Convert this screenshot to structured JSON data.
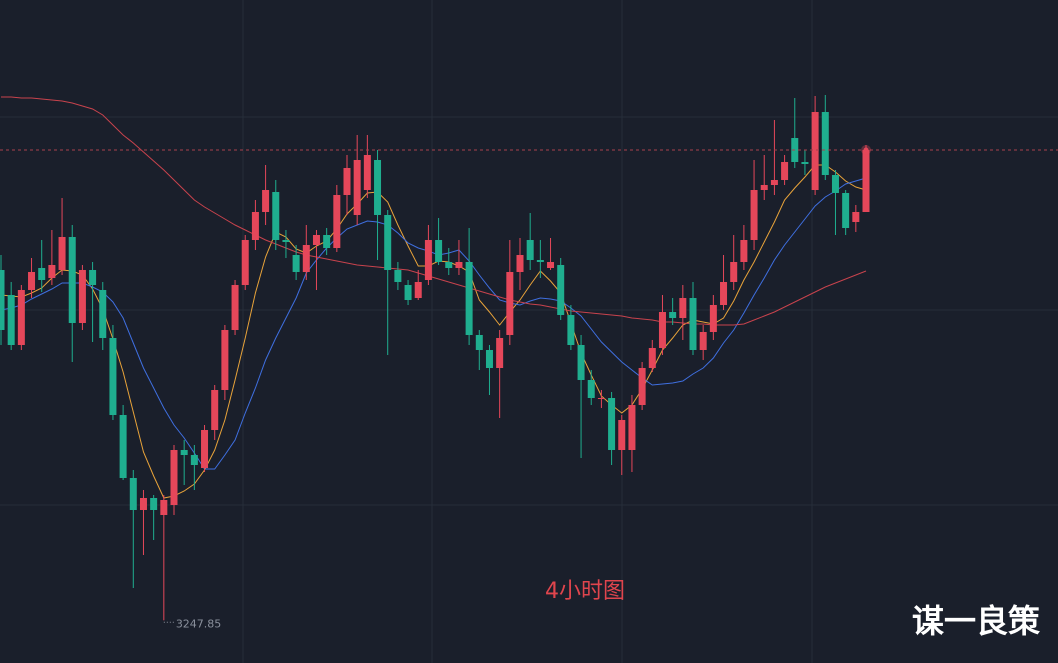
{
  "chart_data": {
    "type": "candlestick",
    "annotation": "4小时图",
    "watermark": "谋一良策",
    "ylim": [
      3226.5,
      3558
    ],
    "grid": true,
    "up_color": "#e5475a",
    "down_color": "#1fae8f",
    "open": [
      3423,
      3410.5,
      3385.5,
      3413,
      3424,
      3419,
      3423,
      3439.5,
      3396.5,
      3423,
      3413,
      3389,
      3350.5,
      3319,
      3303,
      3309,
      3300.5,
      3305.5,
      3333,
      3330.5,
      3324,
      3343,
      3363,
      3393,
      3415.5,
      3438,
      3452,
      3462,
      3438,
      3430.5,
      3422,
      3435.5,
      3440.5,
      3434,
      3460.5,
      3450.5,
      3463,
      3478,
      3450.5,
      3423,
      3415.5,
      3409,
      3418,
      3438,
      3427,
      3424,
      3427,
      3390.5,
      3383,
      3374,
      3390.5,
      3422,
      3438,
      3428,
      3424,
      3425.5,
      3400.5,
      3385.5,
      3368,
      3359,
      3359,
      3333,
      3333,
      3355.5,
      3374,
      3384,
      3402,
      3399,
      3409,
      3383,
      3392,
      3405.5,
      3417,
      3427,
      3438,
      3463,
      3465.5,
      3468,
      3489,
      3477,
      3463,
      3502,
      3470.5,
      3461.5,
      3447,
      3452
    ],
    "high": [
      3430.5,
      3417,
      3415.5,
      3429,
      3438,
      3443,
      3459,
      3445.5,
      3425.5,
      3427,
      3417,
      3395.5,
      3355.5,
      3323,
      3313,
      3310.5,
      3310.5,
      3335.5,
      3338,
      3335.5,
      3345.5,
      3365.5,
      3395.5,
      3418,
      3440.5,
      3458,
      3475.5,
      3468,
      3443,
      3435.5,
      3445.5,
      3443,
      3444,
      3465.5,
      3480.5,
      3490.5,
      3490.5,
      3483,
      3453,
      3427,
      3418,
      3423,
      3445.5,
      3449,
      3434,
      3438,
      3444,
      3393,
      3385.5,
      3393,
      3438,
      3439,
      3451.5,
      3438,
      3439,
      3429,
      3405.5,
      3390.5,
      3373,
      3363,
      3362,
      3350.5,
      3360.5,
      3377,
      3388,
      3410.5,
      3409,
      3415.5,
      3417,
      3395.5,
      3410.5,
      3430.5,
      3440.5,
      3445.5,
      3478,
      3480.5,
      3498,
      3480.5,
      3509,
      3483,
      3510,
      3510.5,
      3473,
      3463,
      3455.5,
      3485.5
    ],
    "low": [
      3385.5,
      3383,
      3383,
      3409,
      3412,
      3415.5,
      3420.5,
      3377,
      3393,
      3387,
      3383,
      3348,
      3318,
      3264,
      3280.5,
      3288,
      3247.85,
      3300.5,
      3315.5,
      3313,
      3322,
      3338,
      3358,
      3390.5,
      3413,
      3433,
      3445.5,
      3433,
      3429,
      3418,
      3418,
      3413,
      3430.5,
      3432,
      3450.5,
      3445.5,
      3459,
      3428,
      3380.5,
      3413,
      3405.5,
      3408,
      3415.5,
      3425.5,
      3420.5,
      3420.5,
      3385.5,
      3373,
      3360.5,
      3349,
      3385.5,
      3413,
      3423,
      3419,
      3423,
      3398,
      3383,
      3329,
      3355.5,
      3354,
      3325.5,
      3320.5,
      3322,
      3353,
      3372,
      3380.5,
      3395.5,
      3388,
      3380.5,
      3378,
      3388,
      3403,
      3413,
      3423,
      3433,
      3458,
      3460.5,
      3465.5,
      3474,
      3470.5,
      3460.5,
      3468,
      3440.5,
      3440.5,
      3442,
      3452
    ],
    "close": [
      3393,
      3385.5,
      3413,
      3422,
      3418,
      3425.5,
      3439.5,
      3396.5,
      3423,
      3415.5,
      3389,
      3350.5,
      3319,
      3303,
      3309,
      3303,
      3308,
      3333,
      3330.5,
      3325.5,
      3343,
      3363,
      3393,
      3415.5,
      3438,
      3452,
      3463,
      3438,
      3437,
      3422,
      3435.5,
      3440.5,
      3434,
      3460.5,
      3474,
      3478,
      3480.5,
      3450.5,
      3423,
      3417,
      3408,
      3417,
      3438,
      3427,
      3424,
      3427,
      3390.5,
      3383,
      3374,
      3389,
      3422,
      3430.5,
      3428,
      3427,
      3427,
      3400.5,
      3385.5,
      3368,
      3359,
      3359,
      3333,
      3348,
      3355.5,
      3374,
      3384,
      3402,
      3399,
      3409,
      3383,
      3392,
      3405.5,
      3417,
      3427,
      3438,
      3463,
      3465.5,
      3468,
      3477,
      3477,
      3476,
      3502,
      3470.5,
      3461.5,
      3444,
      3452,
      3483
    ],
    "lines": [
      {
        "color": "#e8a33a",
        "values": [
          3410.5,
          3410,
          3409.5,
          3411.5,
          3414,
          3419,
          3423,
          3422.5,
          3420.5,
          3413.5,
          3403.5,
          3388.5,
          3372,
          3352,
          3332,
          3320,
          3309,
          3310,
          3312.5,
          3316,
          3323,
          3333,
          3348,
          3368,
          3389,
          3411.5,
          3429.5,
          3442,
          3439.5,
          3433.5,
          3431.5,
          3435,
          3437.5,
          3443.5,
          3451,
          3456,
          3461.5,
          3462,
          3457,
          3445.5,
          3435,
          3425,
          3425,
          3427.5,
          3427,
          3425,
          3422,
          3408,
          3402,
          3395.5,
          3402,
          3408,
          3415.5,
          3422.5,
          3417.5,
          3411.5,
          3396.5,
          3381.5,
          3370.5,
          3360,
          3355.5,
          3351.5,
          3355.5,
          3363.5,
          3373,
          3383,
          3389,
          3395.5,
          3398,
          3397,
          3396,
          3399,
          3407.5,
          3418,
          3427,
          3437,
          3447,
          3458,
          3464,
          3469.5,
          3475.5,
          3475.5,
          3472,
          3467.5,
          3464.5,
          3463
        ]
      },
      {
        "color": "#3f6fe0",
        "values": [
          3403,
          3404,
          3405.5,
          3408.5,
          3411,
          3413.5,
          3416.5,
          3416.5,
          3416.5,
          3414.5,
          3412,
          3407,
          3399,
          3386.5,
          3374,
          3364,
          3354,
          3345.5,
          3339,
          3331.5,
          3323.5,
          3323.5,
          3330.5,
          3338,
          3351.5,
          3364,
          3378,
          3389,
          3399,
          3409,
          3421.5,
          3428,
          3434,
          3439,
          3443.5,
          3445.5,
          3447.5,
          3447,
          3445.5,
          3441.5,
          3436.5,
          3434,
          3432.5,
          3430.5,
          3431.5,
          3433,
          3427.5,
          3420.5,
          3414,
          3408,
          3406.5,
          3405.5,
          3407.5,
          3409,
          3408.5,
          3407.5,
          3404,
          3400,
          3393.5,
          3387,
          3382,
          3377,
          3373,
          3369,
          3365.5,
          3366,
          3366.5,
          3367.5,
          3371,
          3374,
          3379,
          3386.5,
          3393,
          3401.5,
          3410.5,
          3419,
          3428,
          3435.5,
          3442,
          3448.5,
          3455,
          3459.5,
          3462.5,
          3466,
          3467.5,
          3469
        ]
      },
      {
        "color": "#c8434d",
        "values": [
          3509.5,
          3509.5,
          3509,
          3509,
          3508.5,
          3508,
          3507.5,
          3506.5,
          3505,
          3503.5,
          3500.5,
          3495.5,
          3490.5,
          3486.5,
          3482,
          3477.5,
          3473,
          3468,
          3463,
          3458,
          3454.5,
          3451.5,
          3448.5,
          3445.5,
          3443,
          3440.5,
          3438,
          3436,
          3434,
          3432,
          3430.5,
          3429.5,
          3428.5,
          3427.5,
          3426.5,
          3425.5,
          3425,
          3424.5,
          3424,
          3423.5,
          3423,
          3421.5,
          3420,
          3418.5,
          3417,
          3415.5,
          3414,
          3412.5,
          3411,
          3409.5,
          3408,
          3407,
          3406,
          3405.5,
          3404.5,
          3403.5,
          3402.5,
          3402,
          3401.5,
          3401,
          3400.5,
          3400,
          3399,
          3398.5,
          3398,
          3397,
          3397,
          3396.5,
          3396,
          3396,
          3395.5,
          3395.5,
          3395.5,
          3396,
          3398,
          3400,
          3402,
          3404.5,
          3407,
          3409.5,
          3412,
          3414.5,
          3416.5,
          3418.5,
          3420.5,
          3422.5
        ]
      }
    ]
  }
}
